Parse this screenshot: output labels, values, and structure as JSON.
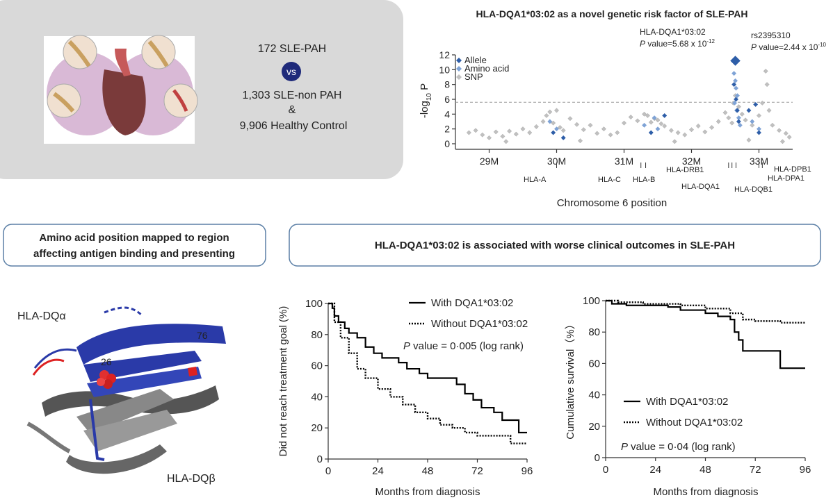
{
  "panel": {
    "cohort1": "172  SLE-PAH",
    "vs": "vs",
    "cohort2": "1,303  SLE-non PAH",
    "and": "&",
    "cohort3": "9,906  Healthy Control"
  },
  "boxes": {
    "left": [
      "Amino acid position mapped to region",
      "affecting antigen binding and presenting"
    ],
    "right": "HLA-DQA1*03:02  is associated with worse clinical outcomes in SLE-PAH"
  },
  "structure": {
    "alpha": "HLA-DQα",
    "beta": "HLA-DQβ",
    "pos1": "26",
    "pos2": "76"
  },
  "chart_data": [
    {
      "type": "scatter",
      "title": "HLA-DQA1*03:02 as  a novel genetic risk factor of SLE-PAH",
      "xlabel": "Chromosome 6 position",
      "ylabel": [
        "-log",
        "10",
        " P"
      ],
      "xlim": [
        28.5,
        33.5
      ],
      "ylim": [
        0,
        12
      ],
      "xticks": [
        {
          "value": 29,
          "label": "29M"
        },
        {
          "value": 30,
          "label": "30M"
        },
        {
          "value": 31,
          "label": "31M"
        },
        {
          "value": 32,
          "label": "32M"
        },
        {
          "value": 33,
          "label": "33M"
        }
      ],
      "yticks": [
        0,
        2,
        4,
        6,
        8,
        10,
        12
      ],
      "threshold": 5.6,
      "annotations": [
        {
          "label": "HLA-DQA1*03:02",
          "p": "P",
          "text": " value=5.68 x 10",
          "exp": "-12"
        },
        {
          "label": "rs2395310",
          "p": "P",
          "text": " value=2.44 x 10",
          "exp": "-10"
        }
      ],
      "genes": [
        {
          "name": "HLA-A",
          "x": 30.0
        },
        {
          "name": "HLA-C",
          "x": 31.25
        },
        {
          "name": "HLA-B",
          "x": 31.32
        },
        {
          "name": "HLA-DRB1",
          "x": 32.55
        },
        {
          "name": "HLA-DQA1",
          "x": 32.6
        },
        {
          "name": "HLA-DQB1",
          "x": 32.66
        },
        {
          "name": "HLA-DPB1",
          "x": 33.05
        },
        {
          "name": "HLA-DPA1",
          "x": 33.0
        }
      ],
      "legend": "upper left",
      "series": [
        {
          "name": "SNP",
          "color": "#c0c0c0",
          "x": [
            28.7,
            28.8,
            28.9,
            29.0,
            29.1,
            29.2,
            29.3,
            29.4,
            29.5,
            29.6,
            29.7,
            29.8,
            29.85,
            29.9,
            29.95,
            30.0,
            30.05,
            30.1,
            30.2,
            30.3,
            30.4,
            30.5,
            30.6,
            30.7,
            30.8,
            30.9,
            31.0,
            31.1,
            31.2,
            31.3,
            31.35,
            31.4,
            31.45,
            31.5,
            31.55,
            31.6,
            31.7,
            31.8,
            31.9,
            32.0,
            32.1,
            32.2,
            32.3,
            32.4,
            32.5,
            32.55,
            32.6,
            32.62,
            32.65,
            32.7,
            32.75,
            32.8,
            32.9,
            33.0,
            33.05,
            33.1,
            33.12,
            33.15,
            33.2,
            33.3,
            33.4,
            33.45,
            29.25,
            30.35,
            31.75,
            32.85,
            33.35
          ],
          "values": [
            1.5,
            1.8,
            1.2,
            0.8,
            1.6,
            1.0,
            1.7,
            1.3,
            2.0,
            1.5,
            2.3,
            3.0,
            3.8,
            4.3,
            2.8,
            4.5,
            2.2,
            1.8,
            3.4,
            2.6,
            1.9,
            2.5,
            1.4,
            2.0,
            1.2,
            1.5,
            2.8,
            3.6,
            3.1,
            4.0,
            3.8,
            2.9,
            3.4,
            3.2,
            2.7,
            2.4,
            1.8,
            1.5,
            1.2,
            1.9,
            2.4,
            1.6,
            2.2,
            3.0,
            4.2,
            3.5,
            2.8,
            5.5,
            6.5,
            5.0,
            4.0,
            3.2,
            2.5,
            3.8,
            5.5,
            9.8,
            8.0,
            4.5,
            2.5,
            1.8,
            1.4,
            0.9,
            0.3,
            0.4,
            0.3,
            0.5,
            0.3
          ]
        },
        {
          "name": "Amino acid",
          "color": "#7fa3d6",
          "x": [
            29.9,
            30.0,
            31.3,
            31.45,
            31.5,
            32.63,
            32.65,
            32.66,
            32.68,
            32.64,
            32.67,
            32.7,
            32.72,
            32.9,
            33.0
          ],
          "values": [
            3.0,
            2.0,
            2.5,
            3.5,
            2.0,
            9.5,
            8.5,
            7.5,
            6.5,
            5.5,
            4.5,
            3.5,
            2.5,
            3.0,
            2.0
          ]
        },
        {
          "name": "Allele",
          "color": "#2e5ea8",
          "x": [
            29.95,
            30.1,
            31.4,
            31.6,
            32.65,
            32.63,
            32.66,
            32.68,
            32.7,
            32.95,
            32.85,
            33.0
          ],
          "values": [
            1.5,
            0.8,
            1.5,
            3.8,
            11.2,
            8.0,
            6.0,
            4.5,
            3.0,
            5.3,
            4.5,
            1.5
          ]
        }
      ]
    },
    {
      "type": "line",
      "step": true,
      "xlabel": "Months from diagnosis",
      "ylabel": "Did not reach treatment goal (%)",
      "xlim": [
        0,
        96
      ],
      "ylim": [
        0,
        100
      ],
      "xticks": [
        0,
        24,
        48,
        72,
        96
      ],
      "yticks": [
        0,
        20,
        40,
        60,
        80,
        100
      ],
      "annotation": {
        "p": "P",
        "text": " value = 0·005 (log rank)"
      },
      "series": [
        {
          "name": "With DQA1*03:02",
          "color": "#000000",
          "dash": "solid",
          "x": [
            0,
            2,
            3,
            5,
            8,
            10,
            14,
            18,
            22,
            26,
            34,
            38,
            44,
            48,
            58,
            62,
            66,
            70,
            74,
            80,
            84,
            90,
            92,
            96
          ],
          "values": [
            100,
            97,
            92,
            88,
            84,
            81,
            78,
            72,
            68,
            65,
            62,
            58,
            55,
            52,
            52,
            48,
            42,
            38,
            33,
            30,
            25,
            25,
            17,
            17
          ]
        },
        {
          "name": "Without DQA1*03:02",
          "color": "#000000",
          "dash": "dotted",
          "x": [
            0,
            3,
            6,
            10,
            14,
            18,
            24,
            30,
            36,
            42,
            48,
            54,
            60,
            66,
            72,
            84,
            88,
            96
          ],
          "values": [
            100,
            88,
            78,
            68,
            58,
            52,
            45,
            40,
            35,
            30,
            26,
            22,
            20,
            17,
            15,
            15,
            10,
            10
          ]
        }
      ]
    },
    {
      "type": "line",
      "step": true,
      "xlabel": "Months from diagnosis",
      "ylabel": "Cumulative survival（%）",
      "xlim": [
        0,
        96
      ],
      "ylim": [
        0,
        100
      ],
      "xticks": [
        0,
        24,
        48,
        72,
        96
      ],
      "yticks": [
        0,
        20,
        40,
        60,
        80,
        100
      ],
      "annotation": {
        "p": "P",
        "text": " value = 0·04 (log rank)"
      },
      "series": [
        {
          "name": "With DQA1*03:02",
          "color": "#000000",
          "dash": "solid",
          "x": [
            0,
            3,
            10,
            30,
            36,
            48,
            54,
            60,
            62,
            64,
            66,
            72,
            80,
            84,
            96
          ],
          "values": [
            100,
            98,
            97,
            96,
            94,
            92,
            90,
            88,
            80,
            75,
            68,
            68,
            68,
            57,
            57
          ]
        },
        {
          "name": "Without DQA1*03:02",
          "color": "#000000",
          "dash": "dotted",
          "x": [
            0,
            6,
            18,
            36,
            48,
            60,
            66,
            72,
            84,
            96
          ],
          "values": [
            100,
            99,
            98,
            97,
            95,
            92,
            88,
            87,
            86,
            86
          ]
        }
      ]
    }
  ]
}
